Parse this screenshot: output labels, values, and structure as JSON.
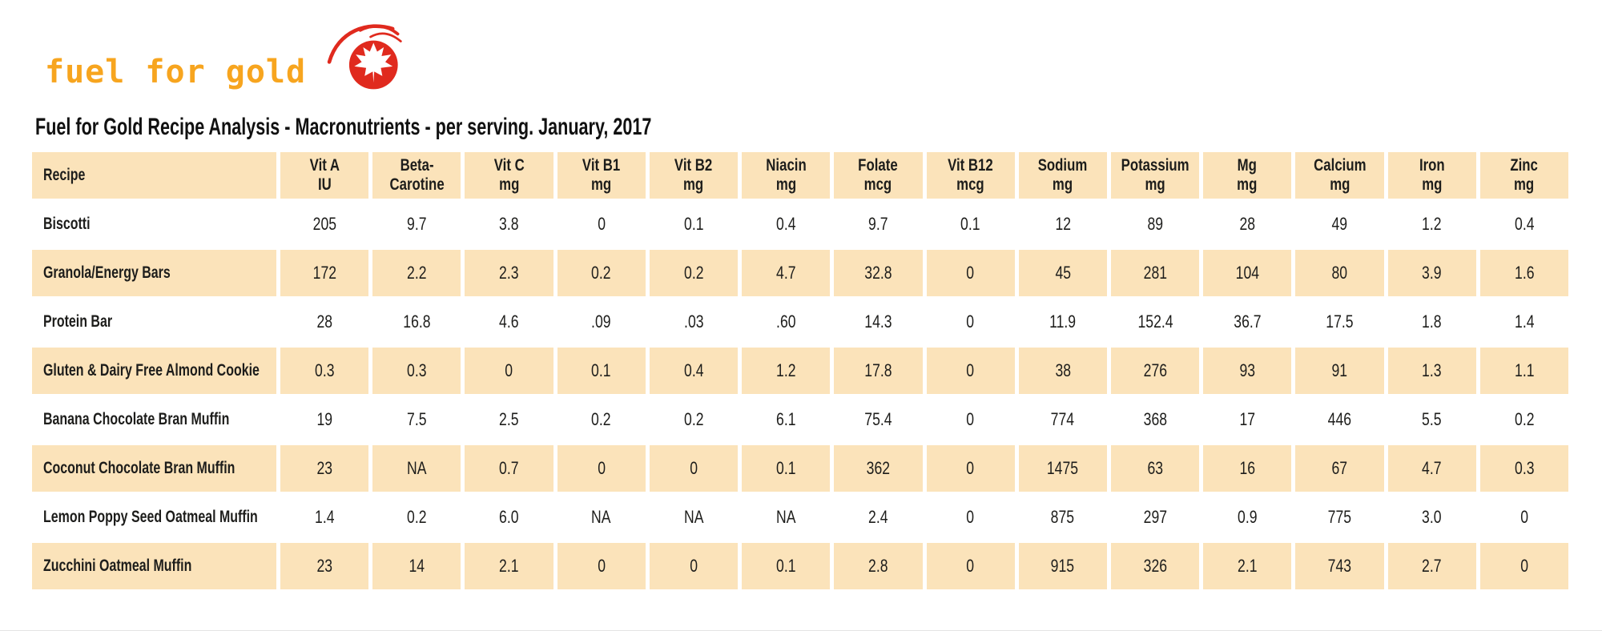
{
  "logo": {
    "text": "fuel for gold",
    "icon": "maple-leaf-comet",
    "text_color": "#F7A51F",
    "icon_color": "#E02A1E"
  },
  "header": {
    "title": "Fuel for Gold Recipe Analysis - Macronutrients - per serving. January, 2017"
  },
  "colors": {
    "accent_orange": "#F7A51F",
    "accent_red": "#E02A1E",
    "row_stripe": "#FBE3BA",
    "text": "#111111"
  },
  "table": {
    "recipe_header": "Recipe",
    "columns": [
      {
        "line1": "Vit A",
        "line2": "IU"
      },
      {
        "line1": "Beta-",
        "line2": "Carotine"
      },
      {
        "line1": "Vit C",
        "line2": "mg"
      },
      {
        "line1": "Vit B1",
        "line2": "mg"
      },
      {
        "line1": "Vit B2",
        "line2": "mg"
      },
      {
        "line1": "Niacin",
        "line2": "mg"
      },
      {
        "line1": "Folate",
        "line2": "mcg"
      },
      {
        "line1": "Vit B12",
        "line2": "mcg"
      },
      {
        "line1": "Sodium",
        "line2": "mg"
      },
      {
        "line1": "Potassium",
        "line2": "mg"
      },
      {
        "line1": "Mg",
        "line2": "mg"
      },
      {
        "line1": "Calcium",
        "line2": "mg"
      },
      {
        "line1": "Iron",
        "line2": "mg"
      },
      {
        "line1": "Zinc",
        "line2": "mg"
      }
    ],
    "rows": [
      {
        "recipe": "Biscotti",
        "values": [
          "205",
          "9.7",
          "3.8",
          "0",
          "0.1",
          "0.4",
          "9.7",
          "0.1",
          "12",
          "89",
          "28",
          "49",
          "1.2",
          "0.4"
        ]
      },
      {
        "recipe": "Granola/Energy Bars",
        "values": [
          "172",
          "2.2",
          "2.3",
          "0.2",
          "0.2",
          "4.7",
          "32.8",
          "0",
          "45",
          "281",
          "104",
          "80",
          "3.9",
          "1.6"
        ]
      },
      {
        "recipe": "Protein Bar",
        "values": [
          "28",
          "16.8",
          "4.6",
          ".09",
          ".03",
          ".60",
          "14.3",
          "0",
          "11.9",
          "152.4",
          "36.7",
          "17.5",
          "1.8",
          "1.4"
        ]
      },
      {
        "recipe": "Gluten & Dairy Free Almond Cookie",
        "values": [
          "0.3",
          "0.3",
          "0",
          "0.1",
          "0.4",
          "1.2",
          "17.8",
          "0",
          "38",
          "276",
          "93",
          "91",
          "1.3",
          "1.1"
        ]
      },
      {
        "recipe": "Banana Chocolate Bran Muffin",
        "values": [
          "19",
          "7.5",
          "2.5",
          "0.2",
          "0.2",
          "6.1",
          "75.4",
          "0",
          "774",
          "368",
          "17",
          "446",
          "5.5",
          "0.2"
        ]
      },
      {
        "recipe": "Coconut Chocolate Bran Muffin",
        "values": [
          "23",
          "NA",
          "0.7",
          "0",
          "0",
          "0.1",
          "362",
          "0",
          "1475",
          "63",
          "16",
          "67",
          "4.7",
          "0.3"
        ]
      },
      {
        "recipe": "Lemon Poppy Seed Oatmeal Muffin",
        "values": [
          "1.4",
          "0.2",
          "6.0",
          "NA",
          "NA",
          "NA",
          "2.4",
          "0",
          "875",
          "297",
          "0.9",
          "775",
          "3.0",
          "0"
        ]
      },
      {
        "recipe": "Zucchini Oatmeal Muffin",
        "values": [
          "23",
          "14",
          "2.1",
          "0",
          "0",
          "0.1",
          "2.8",
          "0",
          "915",
          "326",
          "2.1",
          "743",
          "2.7",
          "0"
        ]
      }
    ]
  }
}
